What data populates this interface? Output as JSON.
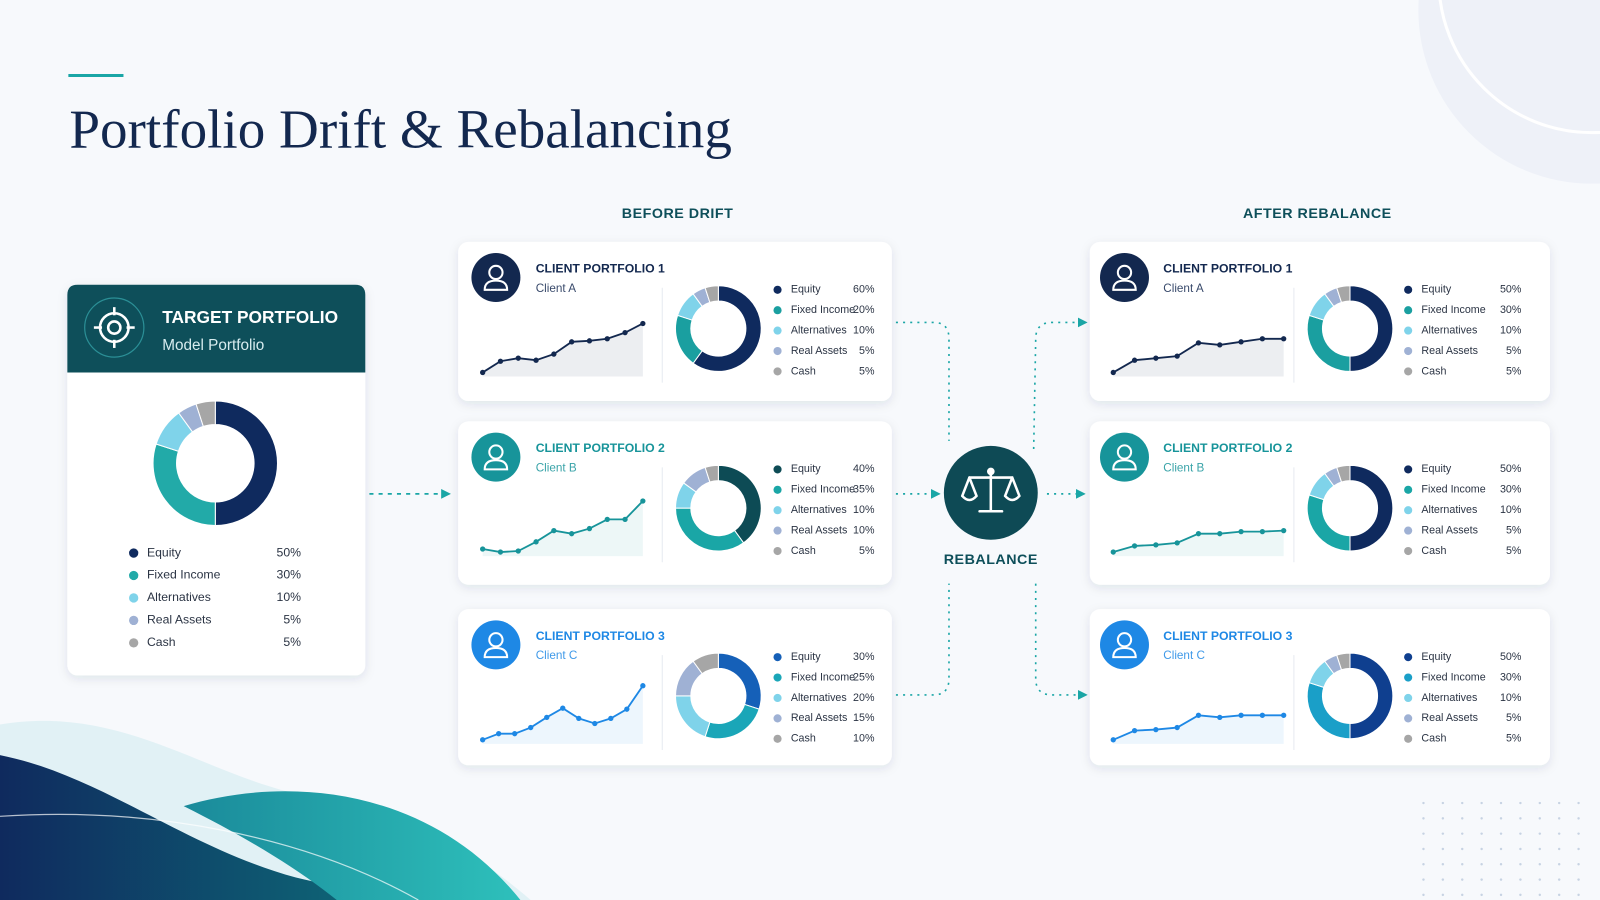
{
  "title": "Portfolio Drift & Rebalancing",
  "before_label": "BEFORE DRIFT",
  "after_label": "AFTER REBALANCE",
  "rebalance_label": "REBALANCE",
  "chart_data": [
    {
      "type": "pie",
      "title": "TARGET PORTFOLIO",
      "subtitle": "Model Portfolio",
      "categories": [
        "Equity",
        "Fixed Income",
        "Alternatives",
        "Real Assets",
        "Cash"
      ],
      "values": [
        50,
        30,
        10,
        5,
        5
      ],
      "value_labels": [
        "50%",
        "30%",
        "10%",
        "5%",
        "5%"
      ],
      "colors": [
        "#0f2a5e",
        "#22aaa8",
        "#7fd3ea",
        "#9fb1d4",
        "#a6a6a6"
      ]
    },
    {
      "type": "pie",
      "title": "CLIENT PORTFOLIO 1",
      "subtitle": "Client A",
      "categories": [
        "Equity",
        "Fixed Income",
        "Alternatives",
        "Real Assets",
        "Cash"
      ],
      "values": [
        60,
        20,
        10,
        5,
        5
      ],
      "value_labels": [
        "60%",
        "20%",
        "10%",
        "5%",
        "5%"
      ],
      "colors": [
        "#0f2a5e",
        "#1a9fa0",
        "#7fd3ea",
        "#9fb1d4",
        "#a6a6a6"
      ]
    },
    {
      "type": "pie",
      "title": "CLIENT PORTFOLIO 2",
      "subtitle": "Client B",
      "categories": [
        "Equity",
        "Fixed Income",
        "Alternatives",
        "Real Assets",
        "Cash"
      ],
      "values": [
        40,
        35,
        10,
        10,
        5
      ],
      "value_labels": [
        "40%",
        "35%",
        "10%",
        "10%",
        "5%"
      ],
      "colors": [
        "#0d4b55",
        "#1aa6a6",
        "#7fd3ea",
        "#9fb1d4",
        "#a6a6a6"
      ]
    },
    {
      "type": "pie",
      "title": "CLIENT PORTFOLIO 3",
      "subtitle": "Client C",
      "categories": [
        "Equity",
        "Fixed Income",
        "Alternatives",
        "Real Assets",
        "Cash"
      ],
      "values": [
        30,
        25,
        20,
        15,
        10
      ],
      "value_labels": [
        "30%",
        "25%",
        "20%",
        "15%",
        "10%"
      ],
      "colors": [
        "#1560b8",
        "#1aa6b8",
        "#7fd3ea",
        "#9fb1d4",
        "#a6a6a6"
      ]
    },
    {
      "type": "pie",
      "title": "CLIENT PORTFOLIO 1",
      "subtitle": "Client A",
      "categories": [
        "Equity",
        "Fixed Income",
        "Alternatives",
        "Real Assets",
        "Cash"
      ],
      "values": [
        50,
        30,
        10,
        5,
        5
      ],
      "value_labels": [
        "50%",
        "30%",
        "10%",
        "5%",
        "5%"
      ],
      "colors": [
        "#0f2a5e",
        "#1a9fa0",
        "#7fd3ea",
        "#9fb1d4",
        "#a6a6a6"
      ]
    },
    {
      "type": "pie",
      "title": "CLIENT PORTFOLIO 2",
      "subtitle": "Client B",
      "categories": [
        "Equity",
        "Fixed Income",
        "Alternatives",
        "Real Assets",
        "Cash"
      ],
      "values": [
        50,
        30,
        10,
        5,
        5
      ],
      "value_labels": [
        "50%",
        "30%",
        "10%",
        "5%",
        "5%"
      ],
      "colors": [
        "#0f2a5e",
        "#1aa6a6",
        "#7fd3ea",
        "#9fb1d4",
        "#a6a6a6"
      ]
    },
    {
      "type": "pie",
      "title": "CLIENT PORTFOLIO 3",
      "subtitle": "Client C",
      "categories": [
        "Equity",
        "Fixed Income",
        "Alternatives",
        "Real Assets",
        "Cash"
      ],
      "values": [
        50,
        30,
        10,
        5,
        5
      ],
      "value_labels": [
        "50%",
        "30%",
        "10%",
        "5%",
        "5%"
      ],
      "colors": [
        "#0f3f8f",
        "#1a9fc8",
        "#7fd3ea",
        "#9fb1d4",
        "#a6a6a6"
      ]
    },
    {
      "type": "line",
      "color": "#13284f",
      "values": [
        0,
        11,
        14,
        12,
        18,
        30,
        31,
        33,
        39,
        48
      ]
    },
    {
      "type": "line",
      "color": "#17949a",
      "values": [
        3,
        0,
        1,
        10,
        21,
        18,
        23,
        32,
        32,
        50
      ]
    },
    {
      "type": "line",
      "color": "#1e88e5",
      "values": [
        0,
        6,
        6,
        12,
        22,
        31,
        21,
        16,
        21,
        30,
        53
      ]
    },
    {
      "type": "line",
      "color": "#13284f",
      "values": [
        0,
        12,
        14,
        16,
        29,
        27,
        30,
        33,
        33
      ]
    },
    {
      "type": "line",
      "color": "#17949a",
      "values": [
        0,
        6,
        7,
        9,
        18,
        18,
        20,
        20,
        21
      ]
    },
    {
      "type": "line",
      "color": "#1e88e5",
      "values": [
        0,
        9,
        10,
        12,
        24,
        22,
        24,
        24,
        24
      ]
    }
  ]
}
